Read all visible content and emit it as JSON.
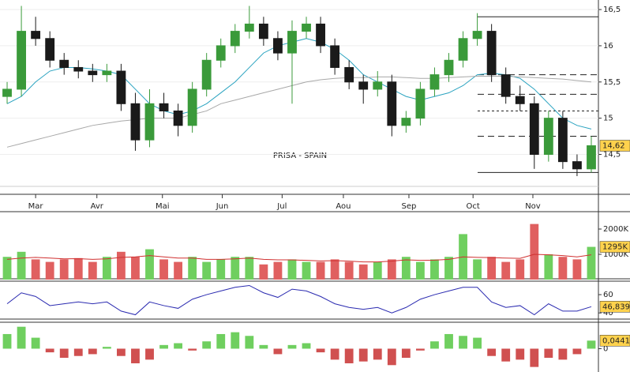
{
  "chart_data": [
    {
      "type": "candlestick",
      "title": "PRISA - SPAIN",
      "xlim": [
        0,
        42
      ],
      "xticks": [
        {
          "value": 2.5,
          "label": "Mar"
        },
        {
          "value": 6.8,
          "label": "Avr"
        },
        {
          "value": 11.4,
          "label": "Mai"
        },
        {
          "value": 15.6,
          "label": "Jun"
        },
        {
          "value": 19.8,
          "label": "Jul"
        },
        {
          "value": 24.1,
          "label": "Aou"
        },
        {
          "value": 28.7,
          "label": "Sep"
        },
        {
          "value": 33.2,
          "label": "Oct"
        },
        {
          "value": 37.4,
          "label": "Nov"
        }
      ],
      "ylim": [
        14.08,
        16.61
      ],
      "yticks": [
        {
          "value": 16.5,
          "label": "16,5"
        },
        16,
        {
          "value": 15.5,
          "label": "15,5"
        },
        15,
        {
          "value": 14.5,
          "label": "14,5"
        }
      ],
      "open": [
        15.3,
        15.4,
        16.2,
        16.1,
        15.8,
        15.7,
        15.65,
        15.6,
        15.65,
        15.2,
        14.7,
        15.2,
        15.1,
        14.9,
        15.4,
        15.8,
        16.0,
        16.2,
        16.3,
        16.1,
        15.9,
        16.2,
        16.3,
        16.0,
        15.7,
        15.5,
        15.4,
        15.5,
        14.9,
        15.0,
        15.4,
        15.6,
        15.8,
        16.1,
        16.2,
        15.6,
        15.3,
        15.2,
        14.5,
        15.0,
        14.4,
        14.3
      ],
      "high": [
        15.5,
        16.55,
        16.4,
        16.2,
        15.9,
        15.8,
        15.75,
        15.75,
        15.75,
        15.35,
        15.4,
        15.35,
        15.2,
        15.5,
        15.9,
        16.1,
        16.3,
        16.55,
        16.4,
        16.2,
        16.35,
        16.4,
        16.4,
        16.1,
        15.8,
        15.6,
        15.65,
        15.6,
        15.1,
        15.5,
        15.7,
        15.9,
        16.2,
        16.45,
        16.3,
        15.7,
        15.45,
        15.3,
        15.1,
        15.1,
        14.5,
        14.75
      ],
      "low": [
        15.2,
        15.3,
        16.0,
        15.7,
        15.6,
        15.55,
        15.5,
        15.5,
        15.1,
        14.55,
        14.6,
        15.0,
        14.75,
        14.8,
        15.3,
        15.7,
        15.9,
        16.1,
        16.0,
        15.8,
        15.2,
        16.1,
        15.9,
        15.6,
        15.4,
        15.2,
        15.3,
        14.75,
        14.8,
        14.9,
        15.3,
        15.5,
        15.7,
        16.0,
        15.5,
        15.2,
        15.1,
        14.3,
        14.4,
        14.3,
        14.2,
        14.25
      ],
      "close": [
        15.4,
        16.2,
        16.1,
        15.8,
        15.7,
        15.65,
        15.6,
        15.65,
        15.2,
        14.7,
        15.2,
        15.1,
        14.9,
        15.4,
        15.8,
        16.0,
        16.2,
        16.3,
        16.1,
        15.9,
        16.2,
        16.3,
        16.0,
        15.7,
        15.5,
        15.4,
        15.5,
        14.9,
        15.0,
        15.4,
        15.6,
        15.8,
        16.1,
        16.2,
        15.6,
        15.3,
        15.2,
        14.5,
        15.0,
        14.4,
        14.3,
        14.62
      ],
      "up_color": "#3a9a3a",
      "down_color": "#1a1a1a",
      "overlays": [
        {
          "color": "#2aa3c0",
          "values": [
            15.2,
            15.3,
            15.5,
            15.65,
            15.7,
            15.7,
            15.68,
            15.65,
            15.6,
            15.4,
            15.2,
            15.1,
            15.05,
            15.1,
            15.2,
            15.35,
            15.5,
            15.7,
            15.9,
            16.0,
            16.05,
            16.1,
            16.05,
            15.95,
            15.8,
            15.6,
            15.5,
            15.4,
            15.3,
            15.25,
            15.3,
            15.35,
            15.45,
            15.6,
            15.62,
            15.6,
            15.55,
            15.4,
            15.2,
            15.0,
            14.9,
            14.85
          ]
        },
        {
          "color": "#a8a8a8",
          "values": [
            14.6,
            14.65,
            14.7,
            14.75,
            14.8,
            14.85,
            14.9,
            14.93,
            14.96,
            14.98,
            15.0,
            15.0,
            15.0,
            15.05,
            15.1,
            15.2,
            15.25,
            15.3,
            15.35,
            15.4,
            15.45,
            15.5,
            15.53,
            15.55,
            15.56,
            15.56,
            15.57,
            15.57,
            15.56,
            15.55,
            15.55,
            15.56,
            15.57,
            15.58,
            15.58,
            15.58,
            15.57,
            15.56,
            15.55,
            15.54,
            15.52,
            15.5
          ]
        }
      ],
      "levels": [
        {
          "value": 16.4,
          "style": "solid"
        },
        {
          "value": 15.6,
          "style": "dashed"
        },
        {
          "value": 15.33,
          "style": "dashed"
        },
        {
          "value": 15.1,
          "style": "dotted"
        },
        {
          "value": 14.75,
          "style": "dashed"
        },
        {
          "value": 14.25,
          "style": "solid"
        }
      ],
      "last_label": {
        "value": 14.62,
        "label": "14,62"
      }
    },
    {
      "type": "bar",
      "values": [
        900000,
        1100000,
        800000,
        700000,
        800000,
        850000,
        700000,
        900000,
        1100000,
        900000,
        1200000,
        800000,
        700000,
        900000,
        700000,
        800000,
        900000,
        900000,
        600000,
        700000,
        800000,
        700000,
        700000,
        800000,
        700000,
        600000,
        700000,
        800000,
        900000,
        700000,
        800000,
        900000,
        1800000,
        800000,
        900000,
        700000,
        800000,
        2200000,
        1000000,
        900000,
        800000,
        1295000
      ],
      "ylim": [
        0,
        2625000
      ],
      "yticks": [
        {
          "value": 2000000,
          "label": "2000K"
        },
        {
          "value": 1000000,
          "label": "1000K"
        }
      ],
      "overlay": {
        "color": "#d03030",
        "values": [
          800000,
          850000,
          880000,
          850000,
          820000,
          830000,
          800000,
          820000,
          880000,
          900000,
          950000,
          900000,
          850000,
          850000,
          800000,
          800000,
          820000,
          850000,
          800000,
          780000,
          780000,
          760000,
          740000,
          750000,
          730000,
          700000,
          700000,
          730000,
          780000,
          760000,
          770000,
          800000,
          900000,
          880000,
          870000,
          850000,
          840000,
          1000000,
          980000,
          950000,
          900000,
          980000
        ]
      },
      "last_label": {
        "value": 1295000,
        "label": "1295K"
      }
    },
    {
      "type": "line",
      "color": "#2a2ab0",
      "values": [
        50,
        62,
        58,
        48,
        50,
        52,
        50,
        52,
        42,
        38,
        52,
        48,
        45,
        55,
        60,
        64,
        68,
        70,
        62,
        57,
        66,
        64,
        58,
        50,
        46,
        44,
        46,
        40,
        46,
        55,
        60,
        64,
        68,
        68,
        52,
        46,
        48,
        38,
        50,
        42,
        42,
        46.839
      ],
      "ylim": [
        35,
        73
      ],
      "yticks": [
        60,
        40
      ],
      "last_label": {
        "value": 46.839,
        "label": "46,839"
      }
    },
    {
      "type": "bar",
      "pos_color": "#6fcf5f",
      "neg_color": "#d05050",
      "values": [
        0.08,
        0.12,
        0.06,
        -0.02,
        -0.05,
        -0.04,
        -0.03,
        0.01,
        -0.04,
        -0.08,
        -0.06,
        0.02,
        0.03,
        -0.01,
        0.04,
        0.08,
        0.09,
        0.07,
        0.02,
        -0.03,
        0.02,
        0.03,
        -0.02,
        -0.06,
        -0.08,
        -0.07,
        -0.06,
        -0.09,
        -0.05,
        -0.01,
        0.04,
        0.08,
        0.07,
        0.06,
        -0.04,
        -0.07,
        -0.06,
        -0.1,
        -0.05,
        -0.06,
        -0.03,
        0.0441
      ],
      "ylim": [
        -0.106,
        0.136
      ],
      "yticks": [
        0
      ],
      "last_label": {
        "value": 0.0441,
        "label": "0,0441"
      }
    }
  ]
}
